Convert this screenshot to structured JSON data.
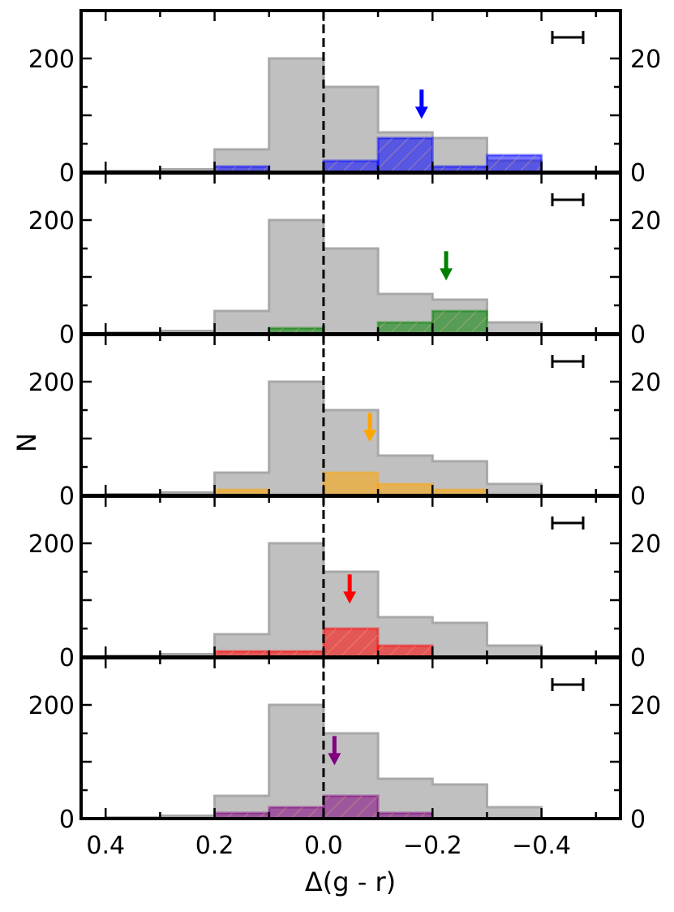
{
  "chart_data": {
    "type": "bar",
    "xlabel": "Δ(g - r)",
    "ylabel": "N",
    "x_ticks": [
      {
        "value": 0.4,
        "label": "0.4"
      },
      {
        "value": 0.2,
        "label": "0.2"
      },
      {
        "value": 0.0,
        "label": "0.0"
      },
      {
        "value": -0.2,
        "label": "−0.2"
      },
      {
        "value": -0.4,
        "label": "−0.4"
      }
    ],
    "xlim": [
      0.445,
      -0.545
    ],
    "x_axis_reversed": true,
    "left_ylim": [
      0,
      240
    ],
    "right_ylim": [
      0,
      24
    ],
    "left_y_ticks": [
      {
        "value": 0,
        "label": "0"
      },
      {
        "value": 200,
        "label": "200"
      }
    ],
    "right_y_ticks": [
      {
        "value": 0,
        "label": "0"
      },
      {
        "value": 20,
        "label": "20"
      }
    ],
    "bin_edges": [
      0.4,
      0.3,
      0.2,
      0.1,
      0.0,
      -0.1,
      -0.2,
      -0.3,
      -0.4
    ],
    "reference_line_x": 0.0,
    "reference_color": "#c0c0c0",
    "reference_counts": [
      2,
      5,
      40,
      200,
      150,
      70,
      60,
      20
    ],
    "panels": [
      {
        "color": "#0000ff",
        "counts": [
          0,
          0,
          1,
          0,
          2,
          6,
          1,
          3
        ],
        "arrow_x": -0.18
      },
      {
        "color": "#008000",
        "counts": [
          0,
          0,
          0,
          1,
          0,
          2,
          4,
          0
        ],
        "arrow_x": -0.225
      },
      {
        "color": "#ffa500",
        "counts": [
          0,
          0,
          1,
          0,
          4,
          2,
          1,
          0
        ],
        "arrow_x": -0.085
      },
      {
        "color": "#ff0000",
        "counts": [
          0,
          0,
          1,
          1,
          5,
          2,
          0,
          0
        ],
        "arrow_x": -0.048
      },
      {
        "color": "#800080",
        "counts": [
          0,
          0,
          1,
          2,
          4,
          1,
          0,
          0
        ],
        "arrow_x": -0.02
      }
    ],
    "grid": false,
    "legend": "none"
  }
}
